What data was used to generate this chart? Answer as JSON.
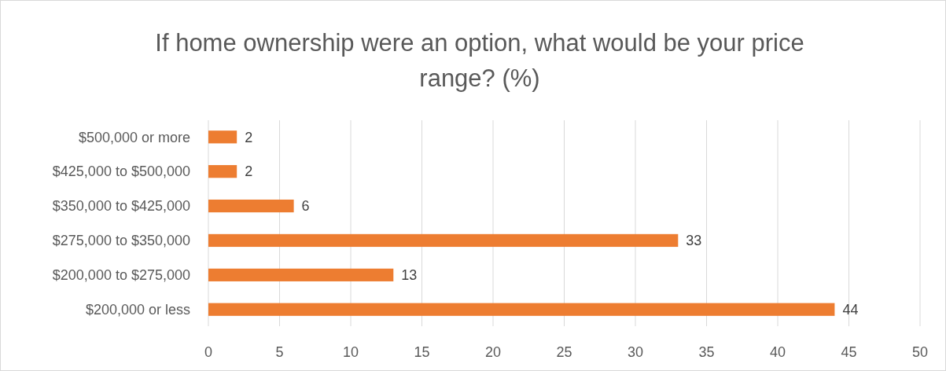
{
  "chart_data": {
    "type": "bar",
    "orientation": "horizontal",
    "title": "If home ownership were an option, what would be your price range? (%)",
    "categories": [
      "$500,000 or more",
      "$425,000 to $500,000",
      "$350,000 to $425,000",
      "$275,000 to $350,000",
      "$200,000 to $275,000",
      "$200,000 or less"
    ],
    "values": [
      2,
      2,
      6,
      33,
      13,
      44
    ],
    "color": "#ed7d31",
    "xlim": [
      0,
      50
    ],
    "xticks": [
      0,
      5,
      10,
      15,
      20,
      25,
      30,
      35,
      40,
      45,
      50
    ],
    "grid": "x",
    "data_labels": true
  }
}
